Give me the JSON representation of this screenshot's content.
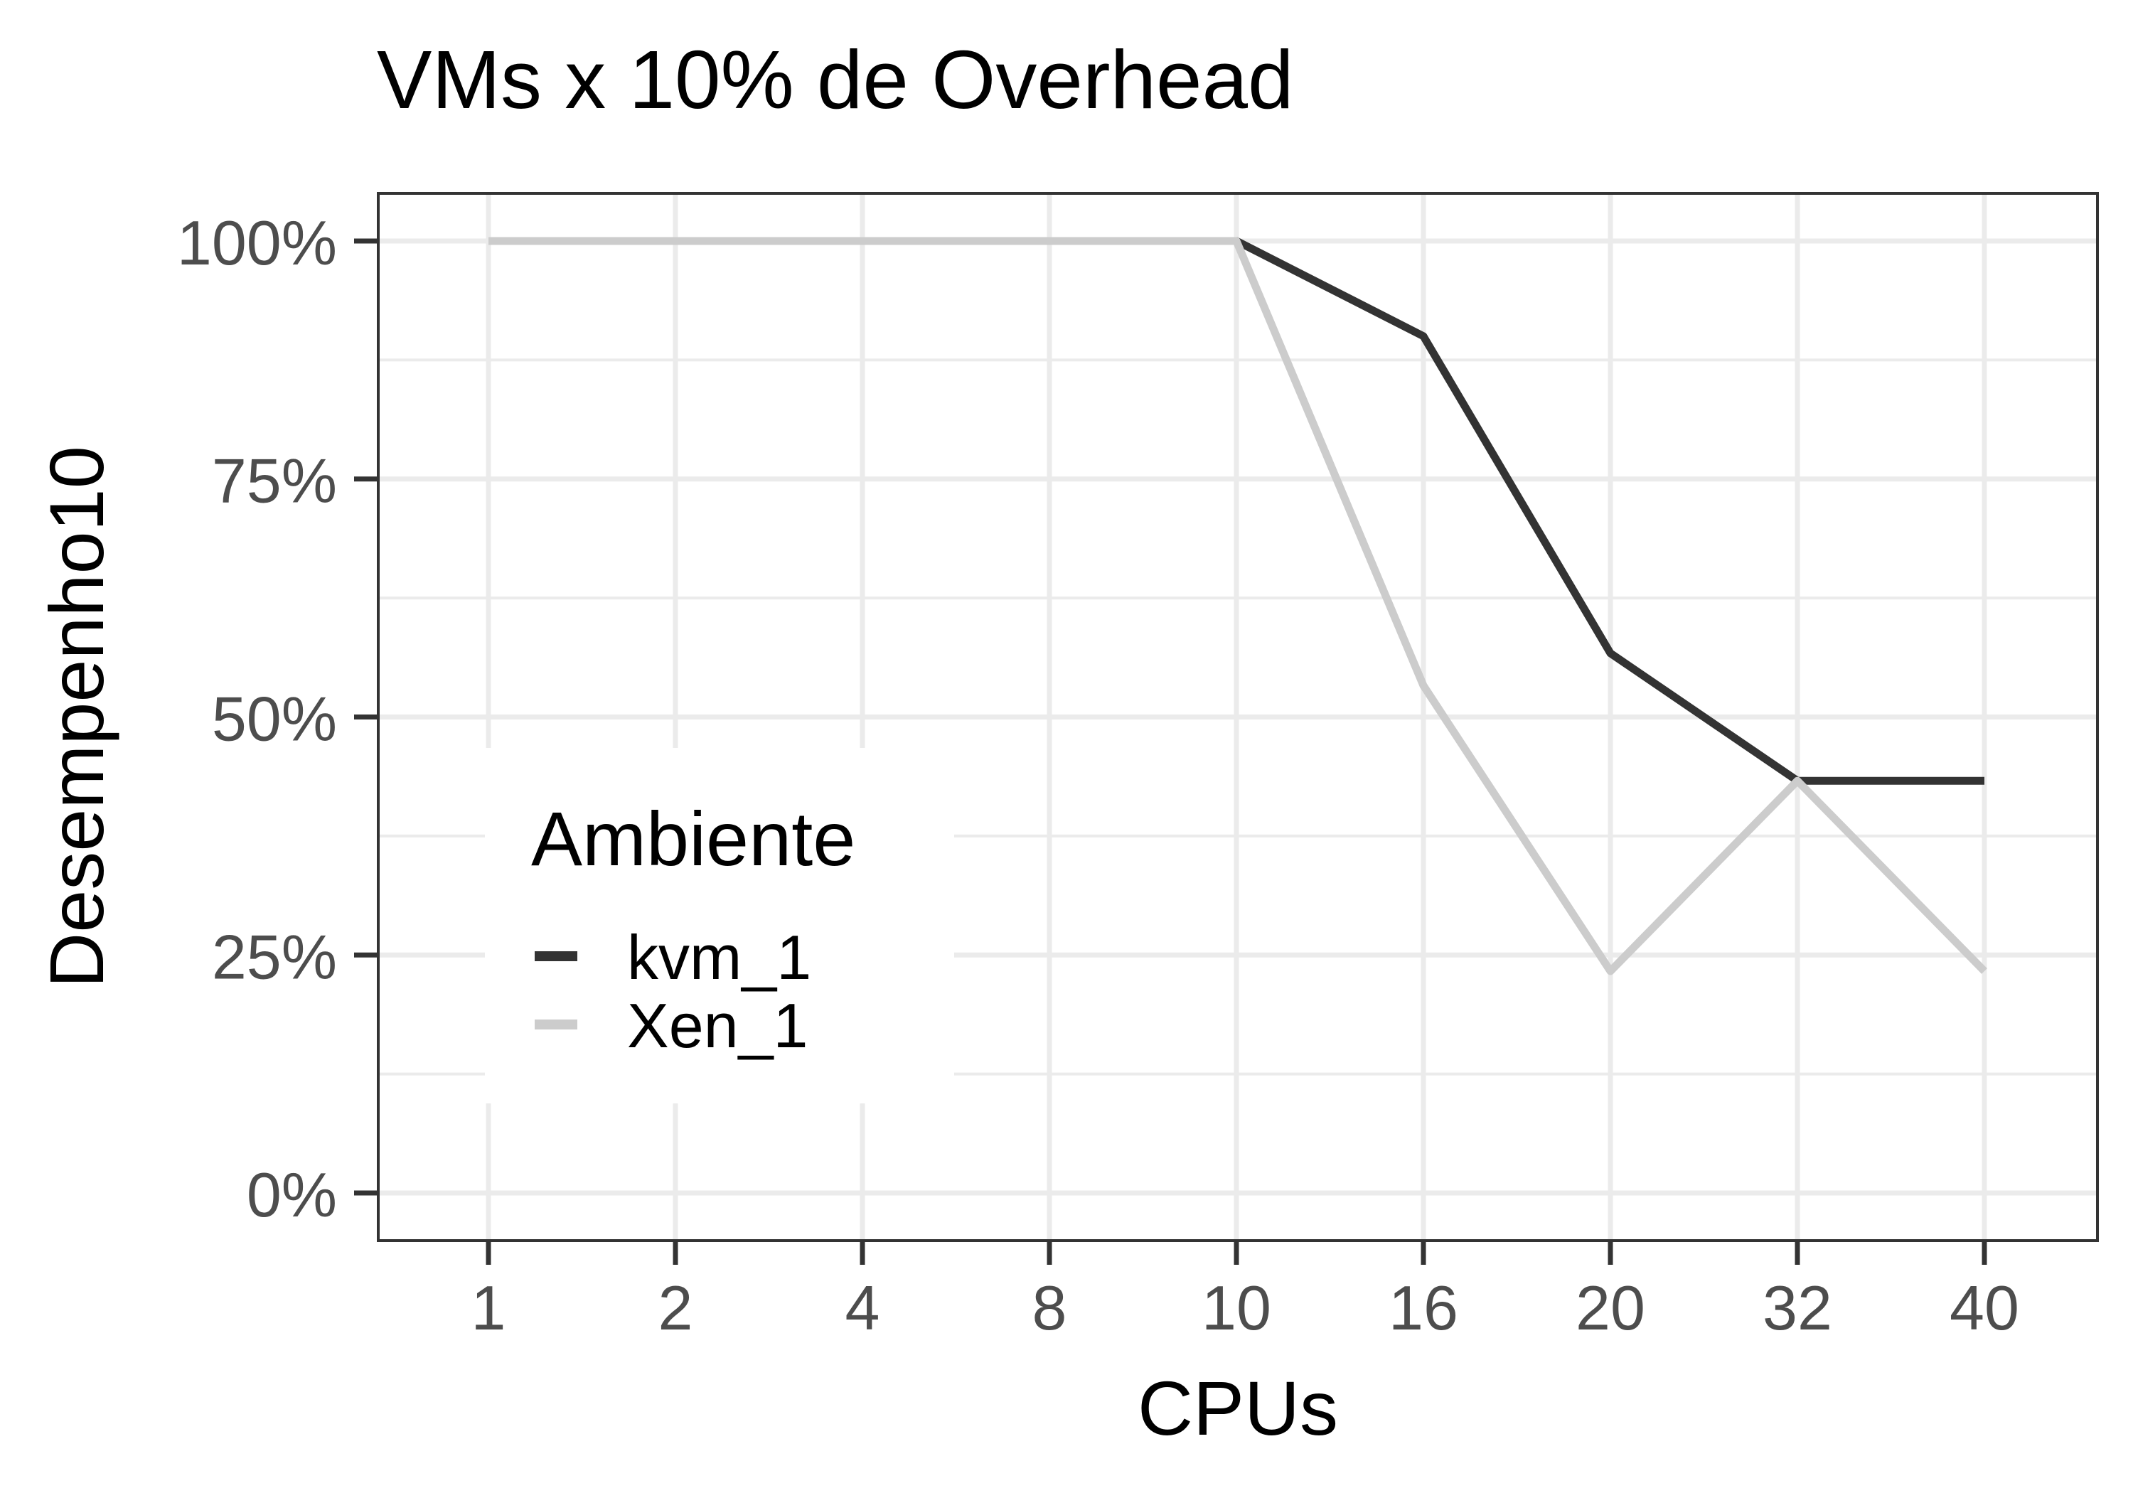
{
  "chart_data": {
    "type": "line",
    "title": "VMs x 10% de Overhead",
    "xlabel": "CPUs",
    "ylabel": "Desempenho10",
    "categories": [
      "1",
      "2",
      "4",
      "8",
      "10",
      "16",
      "20",
      "32",
      "40"
    ],
    "y_ticks": [
      0,
      25,
      50,
      75,
      100
    ],
    "y_tick_labels": [
      "0%",
      "25%",
      "50%",
      "75%",
      "100%"
    ],
    "ylim": [
      -5,
      105
    ],
    "grid": true,
    "legend": {
      "title": "Ambiente",
      "position": "inside-left"
    },
    "series": [
      {
        "name": "kvm_1",
        "color": "#333333",
        "values": [
          100,
          100,
          100,
          100,
          100,
          90,
          56.7,
          43.3,
          43.3
        ]
      },
      {
        "name": "Xen_1",
        "color": "#cccccc",
        "values": [
          100,
          100,
          100,
          100,
          100,
          53.3,
          23.3,
          43.3,
          23.3
        ]
      }
    ],
    "colors": {
      "panel_border": "#333333",
      "grid": "#ebebeb",
      "tick_text": "#4d4d4d",
      "axis_title": "#000000"
    }
  }
}
